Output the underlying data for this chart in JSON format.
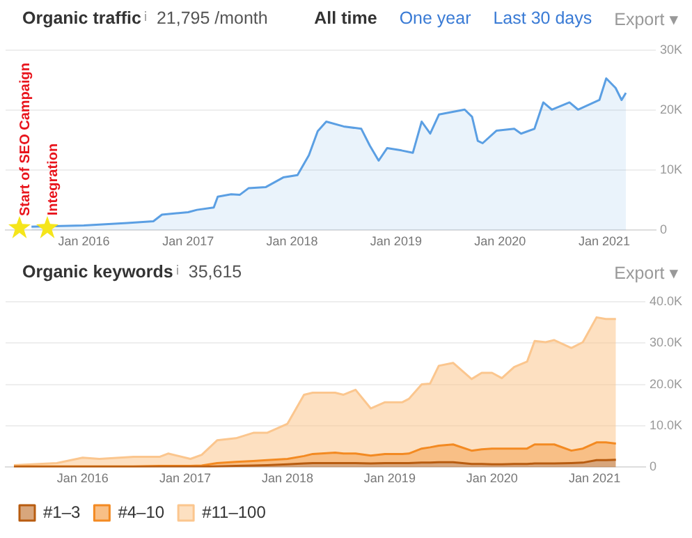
{
  "chart_data": [
    {
      "type": "area",
      "title": "Organic traffic",
      "subtitle": "21,795 /month",
      "annotations": [
        "All time",
        "One year",
        "Last 30 days",
        "Export ▾",
        {
          "text": "Start of SEO Campaign",
          "x": "2015-05-20",
          "y": 500
        },
        {
          "text": "Integration",
          "x": "2015-08-28",
          "y": 600
        }
      ],
      "x": [
        "2015-07",
        "2016-01",
        "2016-06",
        "2016-09",
        "2016-10",
        "2017-01",
        "2017-02",
        "2017-04",
        "2017-04-15",
        "2017-06",
        "2017-07",
        "2017-08",
        "2017-10",
        "2017-12",
        "2018-01-20",
        "2018-03",
        "2018-04",
        "2018-05",
        "2018-07",
        "2018-09",
        "2018-10",
        "2018-11",
        "2018-12",
        "2019-01-20",
        "2019-03",
        "2019-04",
        "2019-05",
        "2019-06",
        "2019-08-30",
        "2019-09-25",
        "2019-10-15",
        "2019-11",
        "2019-12-20",
        "2020-02-20",
        "2020-03-15",
        "2020-05",
        "2020-06",
        "2020-07",
        "2020-09",
        "2020-10",
        "2020-12-15",
        "2021-01-08",
        "2021-02-10",
        "2021-03-03",
        "2021-03-18"
      ],
      "values": [
        600,
        800,
        1200,
        1500,
        2600,
        3000,
        3400,
        3800,
        5600,
        6000,
        5900,
        7000,
        7200,
        8800,
        9200,
        12500,
        16500,
        18100,
        17300,
        16900,
        14100,
        11600,
        13700,
        13300,
        12900,
        18100,
        16100,
        19300,
        20100,
        18900,
        14900,
        14500,
        16600,
        16900,
        16100,
        16900,
        21300,
        20100,
        21300,
        20100,
        21700,
        25300,
        23700,
        21700,
        22900
      ],
      "color": "#5b9fe3",
      "xlim": [
        "2015-04",
        "2021-07"
      ],
      "xticks": [
        {
          "value": "2016-01",
          "label": "Jan 2016"
        },
        {
          "value": "2017-01",
          "label": "Jan 2017"
        },
        {
          "value": "2018-01",
          "label": "Jan 2018"
        },
        {
          "value": "2019-01",
          "label": "Jan 2019"
        },
        {
          "value": "2020-01",
          "label": "Jan 2020"
        },
        {
          "value": "2021-01",
          "label": "Jan 2021"
        }
      ],
      "ylim": [
        0,
        30000
      ],
      "yticks": [
        0,
        {
          "value": 10000,
          "label": "10K"
        },
        {
          "value": 20000,
          "label": "20K"
        },
        {
          "value": 30000,
          "label": "30K"
        }
      ],
      "grid": "y"
    },
    {
      "type": "area",
      "title": "Organic keywords",
      "subtitle": "35,615",
      "stacked": true,
      "legend": "bottom left",
      "annotations": [
        "Export ▾"
      ],
      "x": [
        "2015-05",
        "2015-10",
        "2016-01",
        "2016-03",
        "2016-07",
        "2016-10",
        "2016-11",
        "2017-01-20",
        "2017-03",
        "2017-04-25",
        "2017-07",
        "2017-09",
        "2017-10-20",
        "2018-01",
        "2018-03",
        "2018-04",
        "2018-06-20",
        "2018-07-20",
        "2018-09",
        "2018-10-25",
        "2018-12-15",
        "2019-02-15",
        "2019-03-10",
        "2019-04-25",
        "2019-05-25",
        "2019-06-25",
        "2019-08-15",
        "2019-10-20",
        "2019-11-25",
        "2020-01",
        "2020-02-05",
        "2020-03-20",
        "2020-05-05",
        "2020-06-01",
        "2020-07-10",
        "2020-08-10",
        "2020-10-10",
        "2020-11-20",
        "2021-01-08",
        "2021-02-10",
        "2021-03-18"
      ],
      "series": [
        {
          "name": "#1–3",
          "color": "#b85c10",
          "values": [
            100,
            100,
            100,
            100,
            100,
            100,
            100,
            100,
            100,
            200,
            300,
            400,
            500,
            700,
            900,
            1000,
            1000,
            1000,
            1000,
            900,
            1000,
            1000,
            1000,
            1100,
            1100,
            1200,
            1200,
            800,
            800,
            700,
            700,
            800,
            800,
            900,
            900,
            900,
            1000,
            1100,
            1700,
            1700,
            1800
          ]
        },
        {
          "name": "#4–10",
          "color": "#f38a22",
          "values": [
            100,
            100,
            100,
            100,
            100,
            200,
            200,
            200,
            300,
            800,
            1000,
            1100,
            1200,
            1300,
            1800,
            2200,
            2500,
            2300,
            2300,
            1900,
            2200,
            2200,
            2300,
            3400,
            3700,
            4000,
            4300,
            3200,
            3500,
            3800,
            3800,
            3700,
            3700,
            4600,
            4600,
            4600,
            3000,
            3400,
            4300,
            4300,
            3900
          ]
        },
        {
          "name": "#11–100",
          "color": "#fbc68e",
          "values": [
            300,
            800,
            2100,
            1800,
            2300,
            2200,
            3000,
            1700,
            2600,
            5500,
            5700,
            6800,
            6600,
            8500,
            14800,
            14800,
            14500,
            14200,
            15400,
            11400,
            12500,
            12500,
            13200,
            15500,
            15400,
            19300,
            19700,
            17300,
            18500,
            18300,
            17000,
            19700,
            21000,
            25000,
            24700,
            25200,
            24800,
            25700,
            30200,
            29800,
            30100
          ]
        }
      ],
      "xlim": [
        "2015-04",
        "2021-07"
      ],
      "xticks": [
        {
          "value": "2016-01",
          "label": "Jan 2016"
        },
        {
          "value": "2017-01",
          "label": "Jan 2017"
        },
        {
          "value": "2018-01",
          "label": "Jan 2018"
        },
        {
          "value": "2019-01",
          "label": "Jan 2019"
        },
        {
          "value": "2020-01",
          "label": "Jan 2020"
        },
        {
          "value": "2021-01",
          "label": "Jan 2021"
        }
      ],
      "ylim": [
        0,
        40000
      ],
      "yticks": [
        0,
        {
          "value": 10000,
          "label": "10.0K"
        },
        {
          "value": 20000,
          "label": "20.0K"
        },
        {
          "value": 30000,
          "label": "30.0K"
        },
        {
          "value": 40000,
          "label": "40.0K"
        }
      ],
      "grid": "y"
    }
  ]
}
